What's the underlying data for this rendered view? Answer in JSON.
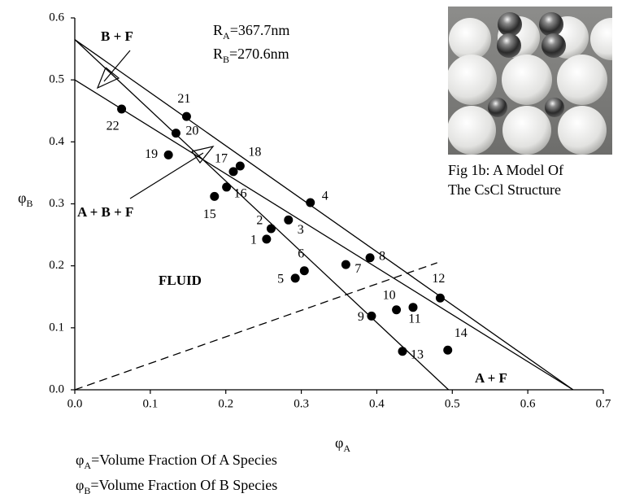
{
  "chart_data": {
    "type": "scatter",
    "x": [
      0.254,
      0.26,
      0.283,
      0.312,
      0.292,
      0.304,
      0.359,
      0.391,
      0.393,
      0.426,
      0.448,
      0.484,
      0.434,
      0.494,
      0.185,
      0.201,
      0.21,
      0.219,
      0.124,
      0.134,
      0.148,
      0.062
    ],
    "y": [
      0.243,
      0.26,
      0.274,
      0.302,
      0.18,
      0.192,
      0.202,
      0.213,
      0.119,
      0.129,
      0.133,
      0.148,
      0.062,
      0.064,
      0.312,
      0.327,
      0.352,
      0.361,
      0.379,
      0.414,
      0.441,
      0.453
    ],
    "labels": [
      "1",
      "2",
      "3",
      "4",
      "5",
      "6",
      "7",
      "8",
      "9",
      "10",
      "11",
      "12",
      "13",
      "14",
      "15",
      "16",
      "17",
      "18",
      "19",
      "20",
      "21",
      "22"
    ],
    "color": "#000000",
    "lines": [
      {
        "x": [
          0,
          0.66
        ],
        "y": [
          0.565,
          0
        ],
        "dashed": false
      },
      {
        "x": [
          0,
          0.495
        ],
        "y": [
          0.565,
          0
        ],
        "dashed": false
      },
      {
        "x": [
          0,
          0.66
        ],
        "y": [
          0.5,
          0
        ],
        "dashed": false
      },
      {
        "x": [
          0,
          0.48
        ],
        "y": [
          0,
          0.205
        ],
        "dashed": true
      }
    ],
    "xlim": [
      0,
      0.7
    ],
    "ylim": [
      0,
      0.6
    ],
    "xticks": [
      {
        "value": 0,
        "label": "0.0"
      },
      0.1,
      0.2,
      0.3,
      0.4,
      0.5,
      0.6,
      0.7
    ],
    "yticks": [
      {
        "value": 0,
        "label": "0.0"
      },
      0.1,
      0.2,
      0.3,
      0.4,
      0.5,
      0.6
    ],
    "x_label": {
      "symbol": "φ",
      "sub": "A"
    },
    "y_label": {
      "symbol": "φ",
      "sub": "B"
    },
    "radii": [
      {
        "symbol": "R",
        "sub": "A",
        "text": "=367.7nm"
      },
      {
        "symbol": "R",
        "sub": "B",
        "text": "=270.6nm"
      }
    ],
    "regions": [
      "B + F",
      "A + B + F",
      "FLUID",
      "A + F"
    ],
    "definitions": [
      {
        "symbol": "φ",
        "sub": "A",
        "text": "=Volume Fraction Of A Species"
      },
      {
        "symbol": "φ",
        "sub": "B",
        "text": "=Volume Fraction Of B Species"
      }
    ]
  },
  "inset": {
    "caption": [
      "Fig 1b: A Model Of",
      "The CsCl Structure"
    ]
  }
}
